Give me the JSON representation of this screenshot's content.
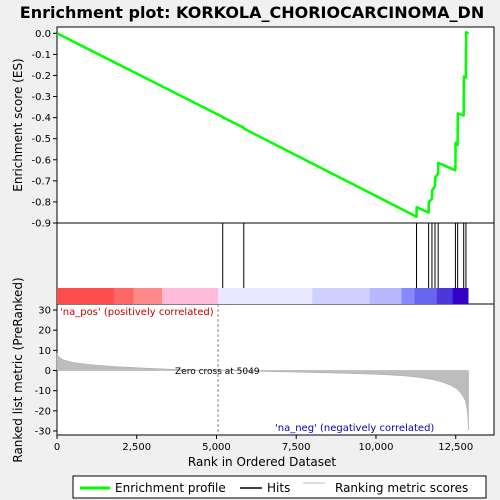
{
  "chart_data": {
    "type": "line",
    "title": "Enrichment plot: KORKOLA_CHORIOCARCINOMA_DN",
    "panels": {
      "enrichment": {
        "ylabel": "Enrichment score (ES)",
        "ylim": [
          -0.9,
          0.03
        ],
        "yticks": [
          0.0,
          -0.1,
          -0.2,
          -0.3,
          -0.4,
          -0.5,
          -0.6,
          -0.7,
          -0.8,
          -0.9
        ],
        "ytick_labels": [
          "0.0",
          "-0.1",
          "-0.2",
          "-0.3",
          "-0.4",
          "-0.5",
          "-0.6",
          "-0.7",
          "-0.8",
          "-0.9"
        ],
        "series": [
          {
            "name": "Enrichment profile",
            "color": "#00ff00",
            "x": [
              0,
              5195,
              5200,
              5855,
              5860,
              11270,
              11275,
              11650,
              11655,
              11755,
              11760,
              11850,
              11855,
              11950,
              11955,
              12490,
              12495,
              12560,
              12565,
              12750,
              12755,
              12820,
              12825,
              12900
            ],
            "y": [
              0.0,
              -0.397,
              -0.399,
              -0.448,
              -0.452,
              -0.87,
              -0.825,
              -0.85,
              -0.8,
              -0.785,
              -0.745,
              -0.725,
              -0.685,
              -0.665,
              -0.615,
              -0.65,
              -0.52,
              -0.53,
              -0.38,
              -0.39,
              -0.205,
              -0.21,
              0.005,
              0.0
            ]
          }
        ]
      },
      "hits": {
        "name": "Hits",
        "color": "#000000",
        "positions": [
          5195,
          5855,
          11270,
          11650,
          11755,
          11850,
          11950,
          12490,
          12560,
          12750,
          12820
        ]
      },
      "heatmap": {
        "colors": [
          "#ff4d4d",
          "#ff6666",
          "#ff8888",
          "#ffbbd9",
          "#e8e8ff",
          "#d0d0ff",
          "#b8b8ff",
          "#8888ff",
          "#6666ee",
          "#4b38dd",
          "#3300c8"
        ],
        "boundaries": [
          0,
          1800,
          2400,
          3300,
          5050,
          8000,
          9800,
          10800,
          11200,
          11900,
          12400,
          12900
        ]
      },
      "ranked": {
        "name": "Ranking metric scores",
        "ylabel": "Ranked list metric (PreRanked)",
        "ylim": [
          -32,
          33
        ],
        "yticks": [
          30,
          20,
          10,
          0,
          -10,
          -20,
          -30
        ],
        "ytick_labels": [
          "30",
          "20",
          "10",
          "0",
          "-10",
          "-20",
          "-30"
        ],
        "color": "#bdbdbd",
        "x": [
          0,
          50,
          200,
          500,
          1000,
          1800,
          2500,
          3300,
          4200,
          5049,
          6000,
          7500,
          9000,
          10000,
          10500,
          11000,
          11400,
          11800,
          12100,
          12350,
          12550,
          12700,
          12800,
          12850,
          12880,
          12900
        ],
        "y": [
          8.5,
          6.8,
          5.3,
          4.0,
          3.0,
          2.0,
          1.4,
          0.8,
          0.3,
          0.0,
          -0.3,
          -0.8,
          -1.4,
          -1.9,
          -2.3,
          -2.8,
          -3.5,
          -4.6,
          -5.9,
          -7.4,
          -9.3,
          -12.0,
          -15.0,
          -19.0,
          -23.0,
          -29.5
        ]
      }
    },
    "xlabel": "Rank in Ordered Dataset",
    "xlim": [
      0,
      13700
    ],
    "xticks": [
      0,
      2500,
      5000,
      7500,
      10000,
      12500
    ],
    "xtick_labels": [
      "0",
      "2,500",
      "5,000",
      "7,500",
      "10,000",
      "12,500"
    ],
    "annotations": {
      "pos_label": "'na_pos' (positively correlated)",
      "neg_label": "'na_neg' (negatively correlated)",
      "zero_cross_label": "Zero cross at 5049",
      "zero_cross_x": 5049
    },
    "legend": {
      "placement": "bottom",
      "items": [
        {
          "label": "Enrichment profile",
          "color": "#00ff00"
        },
        {
          "label": "Hits",
          "color": "#000000"
        },
        {
          "label": "Ranking metric scores",
          "color": "#bdbdbd"
        }
      ]
    },
    "grid": false
  }
}
